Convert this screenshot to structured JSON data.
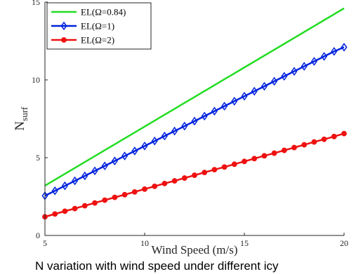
{
  "chart_data": {
    "type": "line",
    "xlabel": "Wind Speed (m/s)",
    "ylabel_main": "N",
    "ylabel_sub": "surf",
    "xlim": [
      5,
      20
    ],
    "ylim": [
      0,
      15
    ],
    "xticks": [
      5,
      10,
      15,
      20
    ],
    "yticks": [
      0,
      5,
      10,
      15
    ],
    "grid": false,
    "legend_position": "top-left",
    "x": [
      5,
      5.5,
      6,
      6.5,
      7,
      7.5,
      8,
      8.5,
      9,
      9.5,
      10,
      10.5,
      11,
      11.5,
      12,
      12.5,
      13,
      13.5,
      14,
      14.5,
      15,
      15.5,
      16,
      16.5,
      17,
      17.5,
      18,
      18.5,
      19,
      19.5,
      20
    ],
    "series": [
      {
        "name": "EL(Ω=0.84)",
        "color": "#22dd22",
        "marker": "none",
        "values": [
          3.2,
          3.58,
          3.96,
          4.34,
          4.72,
          5.1,
          5.48,
          5.86,
          6.24,
          6.62,
          7.0,
          7.38,
          7.76,
          8.14,
          8.52,
          8.9,
          9.28,
          9.66,
          10.04,
          10.42,
          10.8,
          11.18,
          11.56,
          11.94,
          12.32,
          12.7,
          13.08,
          13.46,
          13.84,
          14.22,
          14.6
        ]
      },
      {
        "name": "EL(Ω=1)",
        "color": "#0022dd",
        "marker": "diamond",
        "values": [
          2.55,
          2.87,
          3.19,
          3.51,
          3.83,
          4.15,
          4.47,
          4.79,
          5.11,
          5.43,
          5.75,
          6.07,
          6.39,
          6.71,
          7.03,
          7.35,
          7.67,
          7.99,
          8.31,
          8.63,
          8.95,
          9.27,
          9.59,
          9.91,
          10.23,
          10.55,
          10.87,
          11.19,
          11.51,
          11.83,
          12.1
        ]
      },
      {
        "name": "EL(Ω=2)",
        "color": "#ee1111",
        "marker": "circle",
        "values": [
          1.2,
          1.38,
          1.56,
          1.73,
          1.91,
          2.09,
          2.27,
          2.45,
          2.62,
          2.8,
          2.98,
          3.16,
          3.34,
          3.51,
          3.69,
          3.87,
          4.05,
          4.23,
          4.4,
          4.58,
          4.76,
          4.94,
          5.12,
          5.29,
          5.47,
          5.65,
          5.83,
          6.01,
          6.18,
          6.36,
          6.55
        ]
      }
    ]
  },
  "caption": "N    variation with wind speed under different icy"
}
